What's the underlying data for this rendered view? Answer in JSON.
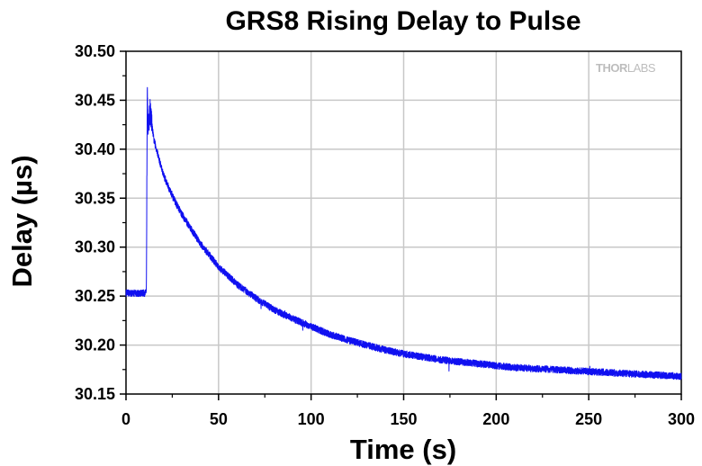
{
  "chart_data": {
    "type": "line",
    "title": "GRS8 Rising Delay to Pulse",
    "xlabel": "Time (s)",
    "ylabel": "Delay (µs)",
    "xlim": [
      0,
      300
    ],
    "ylim": [
      30.15,
      30.5
    ],
    "x_ticks": [
      "0",
      "50",
      "100",
      "150",
      "200",
      "250",
      "300"
    ],
    "y_ticks": [
      "30.15",
      "30.20",
      "30.25",
      "30.30",
      "30.35",
      "30.40",
      "30.45",
      "30.50"
    ],
    "grid": true,
    "watermark": {
      "part1": "THOR",
      "part2": "LABS"
    },
    "series": [
      {
        "color": "#1010f0",
        "x": [
          0,
          5,
          10,
          11,
          11.5,
          12,
          13,
          15,
          20,
          25,
          30,
          40,
          50,
          60,
          70,
          80,
          90,
          100,
          110,
          120,
          130,
          140,
          150,
          160,
          170,
          180,
          190,
          200,
          210,
          220,
          230,
          240,
          250,
          260,
          270,
          280,
          290,
          300
        ],
        "y": [
          30.253,
          30.253,
          30.253,
          30.253,
          30.47,
          30.42,
          30.44,
          30.41,
          30.375,
          30.352,
          30.334,
          30.304,
          30.28,
          30.262,
          30.248,
          30.236,
          30.227,
          30.219,
          30.211,
          30.205,
          30.2,
          30.195,
          30.191,
          30.188,
          30.185,
          30.183,
          30.181,
          30.179,
          30.177,
          30.176,
          30.175,
          30.174,
          30.173,
          30.172,
          30.171,
          30.17,
          30.169,
          30.168
        ]
      }
    ]
  }
}
